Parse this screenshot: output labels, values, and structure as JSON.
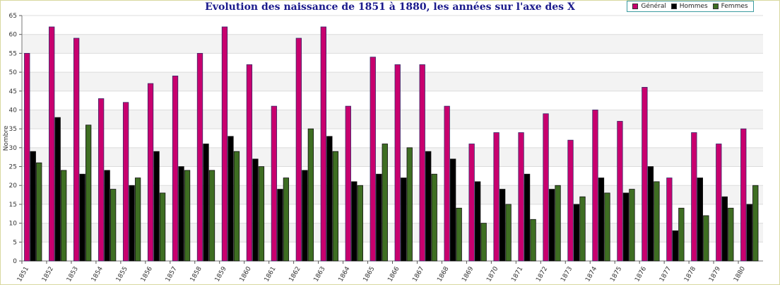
{
  "chart_data": {
    "type": "bar",
    "title": "Evolution des naissance de 1851 à 1880, les années sur l'axe des X",
    "xlabel": "",
    "ylabel": "Nombre",
    "ylim": [
      0,
      65
    ],
    "yticks": [
      "0",
      "5",
      "10",
      "15",
      "20",
      "25",
      "30",
      "35",
      "40",
      "45",
      "50",
      "55",
      "60",
      "65"
    ],
    "grid": true,
    "legend": "top-right",
    "categories": [
      "1851",
      "1852",
      "1853",
      "1854",
      "1855",
      "1856",
      "1857",
      "1858",
      "1859",
      "1860",
      "1861",
      "1862",
      "1863",
      "1864",
      "1865",
      "1866",
      "1867",
      "1868",
      "1869",
      "1870",
      "1871",
      "1872",
      "1873",
      "1874",
      "1875",
      "1876",
      "1877",
      "1878",
      "1879",
      "1880"
    ],
    "series": [
      {
        "name": "Général",
        "color": "#c8006e",
        "values": [
          55,
          62,
          59,
          43,
          42,
          47,
          49,
          55,
          62,
          52,
          41,
          59,
          62,
          41,
          54,
          52,
          52,
          41,
          31,
          34,
          34,
          39,
          32,
          40,
          37,
          46,
          22,
          34,
          31,
          35
        ]
      },
      {
        "name": "Hommes",
        "color": "#000000",
        "values": [
          29,
          38,
          23,
          24,
          20,
          29,
          25,
          31,
          33,
          27,
          19,
          24,
          33,
          21,
          23,
          22,
          29,
          27,
          21,
          19,
          23,
          19,
          15,
          22,
          18,
          25,
          8,
          22,
          17,
          15
        ]
      },
      {
        "name": "Femmes",
        "color": "#3e6e22",
        "values": [
          26,
          24,
          36,
          19,
          22,
          18,
          24,
          24,
          29,
          25,
          22,
          35,
          29,
          20,
          31,
          30,
          23,
          14,
          10,
          15,
          11,
          20,
          17,
          18,
          19,
          21,
          14,
          12,
          14,
          20
        ]
      }
    ]
  }
}
